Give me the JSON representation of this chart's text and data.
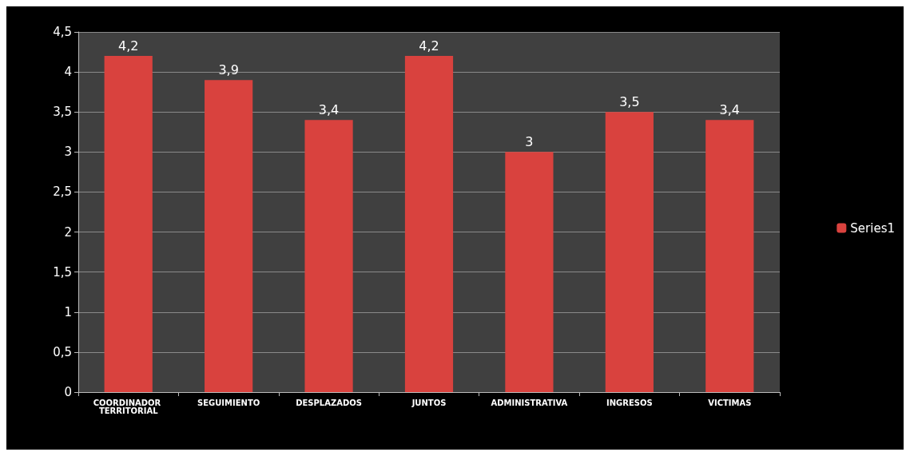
{
  "chart_data": {
    "type": "bar",
    "categories": [
      "COORDINADOR TERRITORIAL",
      "SEGUIMIENTO",
      "DESPLAZADOS",
      "JUNTOS",
      "ADMINISTRATIVA",
      "INGRESOS",
      "VICTIMAS"
    ],
    "series": [
      {
        "name": "Series1",
        "color": "#d9423e",
        "values": [
          4.2,
          3.9,
          3.4,
          4.2,
          3,
          3.5,
          3.4
        ],
        "value_labels": [
          "4,2",
          "3,9",
          "3,4",
          "4,2",
          "3",
          "3,5",
          "3,4"
        ]
      }
    ],
    "ylim": [
      0,
      4.5
    ],
    "yticks": [
      0,
      {
        "value": 0.5,
        "label": "0,5"
      },
      1,
      {
        "value": 1.5,
        "label": "1,5"
      },
      2,
      {
        "value": 2.5,
        "label": "2,5"
      },
      3,
      {
        "value": 3.5,
        "label": "3,5"
      },
      4,
      {
        "value": 4.5,
        "label": "4,5"
      }
    ],
    "grid": "y",
    "legend": "right"
  }
}
